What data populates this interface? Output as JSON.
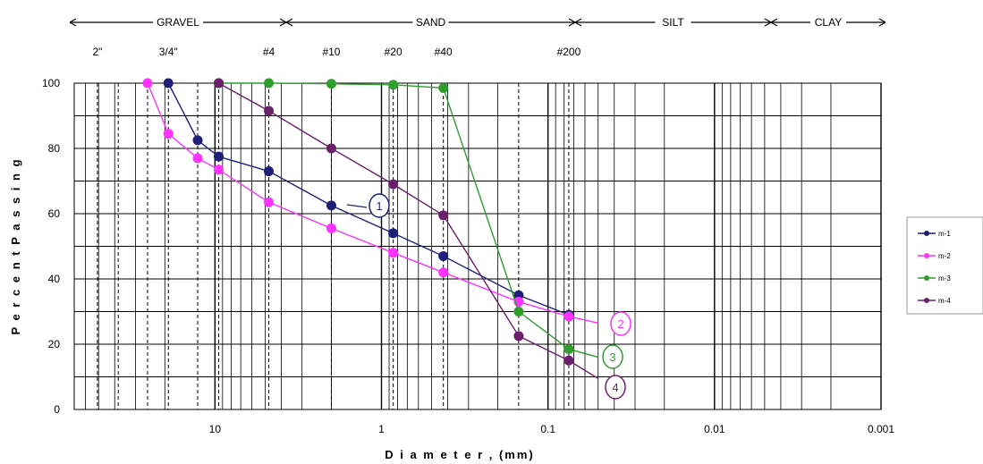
{
  "chart_data": {
    "type": "line",
    "xlabel": "D i a m e t e r , (mm)",
    "ylabel": "P e r c e n t   P a s s i n g",
    "x_scale": "log",
    "x_reversed": true,
    "xlim": [
      0.001,
      70
    ],
    "ylim": [
      0,
      100
    ],
    "x_tick_labels": [
      "10",
      "1",
      "0.1",
      "0.01",
      "0.001"
    ],
    "x_tick_values": [
      10,
      1,
      0.1,
      0.01,
      0.001
    ],
    "y_tick_labels": [
      "0",
      "20",
      "40",
      "60",
      "80",
      "100"
    ],
    "y_tick_values": [
      0,
      20,
      40,
      60,
      80,
      100
    ],
    "grid": true,
    "legend_position": "right",
    "sieves": [
      {
        "label": "2\"",
        "x": 50.8
      },
      {
        "label": "3/4\"",
        "x": 19.05
      },
      {
        "label": "#4",
        "x": 4.75
      },
      {
        "label": "#10",
        "x": 2.0
      },
      {
        "label": "#20",
        "x": 0.85
      },
      {
        "label": "#40",
        "x": 0.425
      },
      {
        "label": "#200",
        "x": 0.075
      }
    ],
    "bands": [
      {
        "label": "GRAVEL",
        "from": 70,
        "to": 4.75
      },
      {
        "label": "SAND",
        "from": 4.75,
        "to": 0.075
      },
      {
        "label": "SILT",
        "from": 0.075,
        "to": 0.005
      },
      {
        "label": "CLAY",
        "from": 0.005,
        "to": 0.001
      }
    ],
    "series": [
      {
        "name": "m-1",
        "color": "#1f1f7a",
        "callout": "1",
        "x": [
          19.05,
          12.7,
          9.5,
          4.75,
          2.0,
          0.85,
          0.425,
          0.15,
          0.075
        ],
        "y": [
          100,
          82.5,
          77.5,
          73,
          62.5,
          54,
          47,
          35,
          29
        ]
      },
      {
        "name": "m-2",
        "color": "#ff33ff",
        "callout": "2",
        "x": [
          25.4,
          19.05,
          12.7,
          9.5,
          4.75,
          2.0,
          0.85,
          0.425,
          0.15,
          0.075,
          0.05
        ],
        "y": [
          100,
          84.5,
          77,
          73.5,
          63.5,
          55.5,
          48,
          42,
          33,
          28.5,
          26.5
        ]
      },
      {
        "name": "m-3",
        "color": "#2e9e2e",
        "callout": "3",
        "x": [
          9.5,
          4.75,
          2.0,
          0.85,
          0.425,
          0.15,
          0.075,
          0.05
        ],
        "y": [
          100,
          100,
          99.8,
          99.5,
          98.5,
          30,
          18.5,
          16
        ]
      },
      {
        "name": "m-4",
        "color": "#6b1f6b",
        "callout": "4",
        "x": [
          9.5,
          4.75,
          2.0,
          0.85,
          0.425,
          0.15,
          0.075,
          0.05
        ],
        "y": [
          100,
          91.5,
          80,
          69,
          59.5,
          22.5,
          15,
          9.5
        ]
      }
    ]
  }
}
